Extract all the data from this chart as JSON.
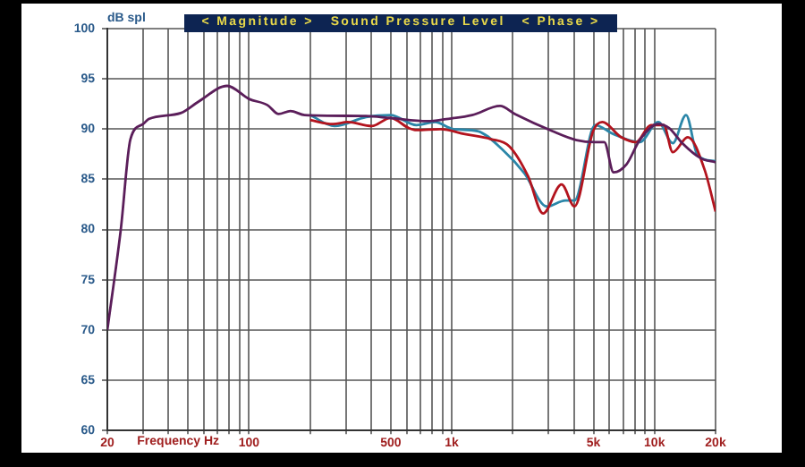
{
  "chart_data": {
    "type": "line",
    "title": "< Magnitude >   Sound Pressure Level   < Phase >",
    "ylabel": "dB spl",
    "xlabel": "Frequency Hz",
    "log": "x",
    "grid": true,
    "legend": false,
    "marker": "none",
    "line_style": "solid",
    "xlim": [
      20,
      20000
    ],
    "ylim": [
      60,
      100
    ],
    "xticks": [
      20,
      {
        "value": 30,
        "label": null
      },
      {
        "value": 40,
        "label": null
      },
      {
        "value": 50,
        "label": null
      },
      {
        "value": 60,
        "label": null
      },
      {
        "value": 70,
        "label": null
      },
      {
        "value": 80,
        "label": null
      },
      {
        "value": 90,
        "label": null
      },
      100,
      {
        "value": 200,
        "label": null
      },
      {
        "value": 300,
        "label": null
      },
      {
        "value": 400,
        "label": null
      },
      500,
      {
        "value": 600,
        "label": null
      },
      {
        "value": 700,
        "label": null
      },
      {
        "value": 800,
        "label": null
      },
      {
        "value": 900,
        "label": null
      },
      {
        "value": 1000,
        "label": "1k"
      },
      {
        "value": 2000,
        "label": null
      },
      {
        "value": 3000,
        "label": null
      },
      {
        "value": 4000,
        "label": null
      },
      {
        "value": 5000,
        "label": "5k"
      },
      {
        "value": 6000,
        "label": null
      },
      {
        "value": 7000,
        "label": null
      },
      {
        "value": 8000,
        "label": null
      },
      {
        "value": 9000,
        "label": null
      },
      {
        "value": 10000,
        "label": "10k"
      },
      {
        "value": 20000,
        "label": "20k"
      }
    ],
    "yticks": [
      60,
      65,
      70,
      75,
      80,
      85,
      90,
      95,
      100
    ],
    "series": [
      {
        "color": "#5b1e5a",
        "x": [
          20,
          23.3,
          26,
          30,
          32,
          46,
          56,
          78,
          100,
          123,
          140,
          160,
          188,
          378,
          498,
          760,
          938,
          1260,
          1730,
          2050,
          3130,
          4120,
          5090,
          5650,
          6280,
          7280,
          8450,
          10430,
          11800,
          13700,
          16900,
          20000
        ],
        "values": [
          70,
          80,
          89,
          90.5,
          91,
          91.6,
          92.7,
          94.3,
          93,
          92.4,
          91.5,
          91.8,
          91.4,
          91.3,
          91.1,
          90.8,
          91,
          91.4,
          92.3,
          91.5,
          89.8,
          88.9,
          88.7,
          88.7,
          85.7,
          86.5,
          88.9,
          90.5,
          90.1,
          88.6,
          87.1,
          86.7
        ]
      },
      {
        "color": "#b3141e",
        "x": [
          200,
          260,
          306,
          403,
          498,
          615,
          670,
          881,
          1160,
          1560,
          1920,
          2380,
          2820,
          3480,
          4030,
          4980,
          5530,
          6840,
          8090,
          9590,
          11100,
          12300,
          14600,
          17700,
          20000
        ],
        "values": [
          90.9,
          90.5,
          90.7,
          90.3,
          91.1,
          90.1,
          89.9,
          90,
          89.5,
          89,
          88.3,
          85.3,
          81.6,
          84.5,
          82.3,
          89.8,
          90.7,
          89.2,
          88.7,
          90.4,
          90.4,
          87.7,
          89.2,
          85.9,
          81.8
        ]
      },
      {
        "color": "#2b86a8",
        "x": [
          200,
          264,
          378,
          498,
          670,
          826,
          1020,
          1340,
          1770,
          2280,
          2940,
          3630,
          4030,
          5090,
          6280,
          8450,
          10430,
          12300,
          14300,
          16300,
          20000
        ],
        "values": [
          91.4,
          90.3,
          91.2,
          91.4,
          90.4,
          90.7,
          90,
          89.8,
          88,
          85.6,
          82.3,
          82.9,
          82.9,
          90.4,
          89.5,
          88.7,
          90.7,
          88.6,
          91.4,
          87.4,
          86.8
        ]
      }
    ]
  }
}
